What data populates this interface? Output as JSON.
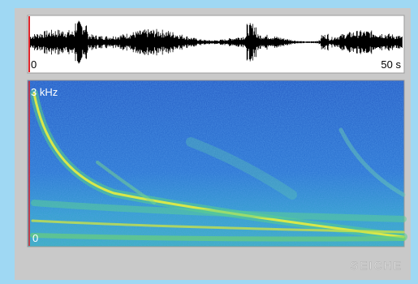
{
  "waveform": {
    "time_start": "0",
    "time_end": "50 s"
  },
  "spectrogram": {
    "freq_max": "3 kHz",
    "freq_min": "0"
  },
  "brand": "SEICHE"
}
